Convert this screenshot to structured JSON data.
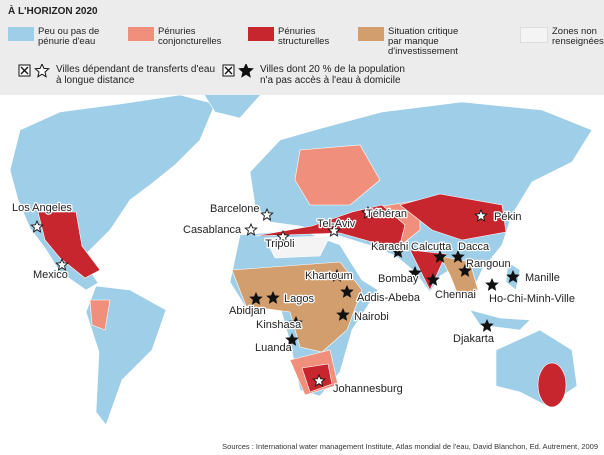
{
  "title": "À L'HORIZON 2020",
  "legend": {
    "zones": [
      {
        "label": "Peu ou pas de pénurie d'eau",
        "color": "#9fcfe8"
      },
      {
        "label": "Pénuries conjoncturelles",
        "color": "#f0907c"
      },
      {
        "label": "Pénuries structurelles",
        "color": "#c8262e"
      },
      {
        "label": "Situation critique par manque d'investissement",
        "color": "#d39e6e"
      },
      {
        "label": "Zones non renseignées",
        "color": "#f4f4f4"
      }
    ],
    "markers": [
      {
        "label": "Villes dépendant de transferts d'eau à longue distance",
        "cities": [
          "Los Angeles",
          "Mexico",
          "Barcelone",
          "Casablanca",
          "Tripoli",
          "Tel-Aviv",
          "Téhéran",
          "Pékin",
          "Johannesburg"
        ]
      },
      {
        "label": "Villes dont 20 % de la population n'a pas accès à l'eau à domicile",
        "cities": [
          "Karachi",
          "Calcutta",
          "Dacca",
          "Bombay",
          "Rangoun",
          "Chennai",
          "Manille",
          "Ho-Chi-Minh-Ville",
          "Khartoum",
          "Abidjan",
          "Lagos",
          "Addis-Abeba",
          "Nairobi",
          "Kinshasa",
          "Luanda",
          "Djakarta"
        ]
      }
    ]
  },
  "source": "Sources : International water management Institute, Atlas mondial de l'eau, David Blanchon, Ed. Autrement, 2009"
}
